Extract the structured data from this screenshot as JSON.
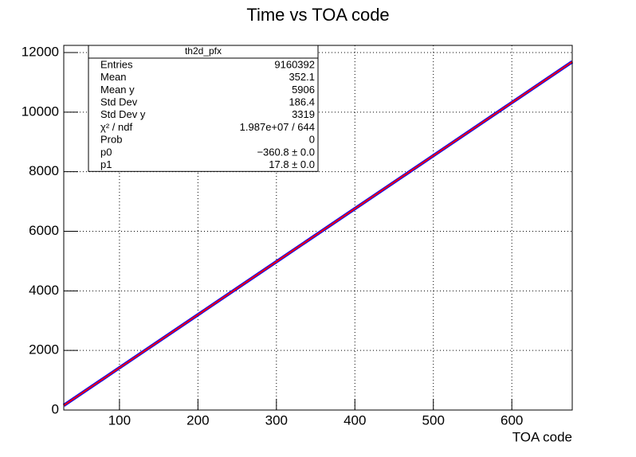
{
  "chart_data": {
    "type": "line",
    "title": "Time vs TOA code",
    "x_label": "TOA code",
    "xlim": [
      29,
      677
    ],
    "xticks": [
      100,
      200,
      300,
      400,
      500,
      600
    ],
    "ylim": [
      0,
      12240
    ],
    "yticks": [
      0,
      2000,
      4000,
      6000,
      8000,
      10000,
      12000
    ],
    "grid": true,
    "series": [
      {
        "color": "#0000ff",
        "x": [
          29,
          100,
          200,
          300,
          400,
          500,
          600,
          677
        ],
        "values": [
          155,
          1419,
          3199,
          4979,
          6759,
          8539,
          10319,
          11690
        ]
      },
      {
        "color": "#ff0000",
        "x": [
          29,
          677
        ],
        "values": [
          155,
          11690
        ]
      }
    ],
    "stats_box": {
      "title": "th2d_pfx",
      "rows": [
        [
          "Entries",
          "9160392"
        ],
        [
          "Mean",
          "352.1"
        ],
        [
          "Mean y",
          "5906"
        ],
        [
          "Std Dev",
          "186.4"
        ],
        [
          "Std Dev y",
          "3319"
        ],
        [
          "χ² / ndf",
          "1.987e+07 / 644"
        ],
        [
          "Prob",
          "0"
        ],
        [
          "p0",
          "−360.8 ± 0.0"
        ],
        [
          "p1",
          "17.8 ± 0.0"
        ]
      ]
    }
  }
}
